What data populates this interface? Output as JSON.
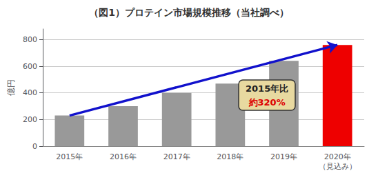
{
  "chart_data": {
    "type": "bar",
    "title": "（図1）プロテイン市場規模推移（当社調べ）",
    "ylabel": "億円",
    "categories": [
      "2015年",
      "2016年",
      "2017年",
      "2018年",
      "2019年",
      "2020年"
    ],
    "values": [
      230,
      300,
      400,
      470,
      640,
      760
    ],
    "colors": [
      "#999999",
      "#999999",
      "#999999",
      "#999999",
      "#999999",
      "#ee0000"
    ],
    "ylim": [
      0,
      880
    ],
    "yticks": [
      0,
      200,
      400,
      600,
      800
    ],
    "grid": true,
    "annotations": [
      {
        "text": "2015年比",
        "color": "#222222"
      },
      {
        "text": "約320%",
        "color": "#dd0000"
      },
      {
        "text": "（見込み）",
        "category": "2020年"
      },
      {
        "type": "arrow",
        "from": "2015年",
        "to": "2020年",
        "color": "#1111cc"
      }
    ]
  }
}
